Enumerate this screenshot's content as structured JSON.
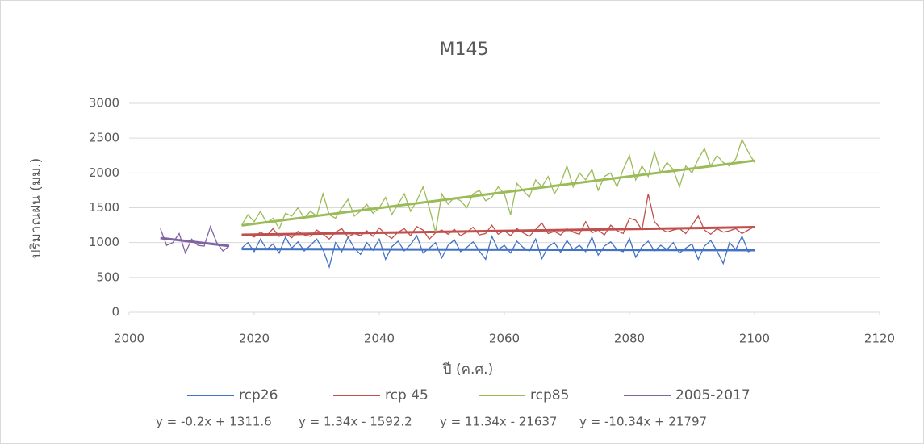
{
  "chart_data": {
    "type": "line",
    "title": "M145",
    "x_label": "ปี (ค.ศ.)",
    "y_label": "ปริมาณฝน (มม.)",
    "xlim": [
      2000,
      2120
    ],
    "xticks": [
      2000,
      2020,
      2040,
      2060,
      2080,
      2100,
      2120
    ],
    "ylim": [
      0,
      3000
    ],
    "yticks": [
      0,
      500,
      1000,
      1500,
      2000,
      2500,
      3000
    ],
    "grid": true,
    "legend": "bottom",
    "x": [
      2018,
      2019,
      2020,
      2021,
      2022,
      2023,
      2024,
      2025,
      2026,
      2027,
      2028,
      2029,
      2030,
      2031,
      2032,
      2033,
      2034,
      2035,
      2036,
      2037,
      2038,
      2039,
      2040,
      2041,
      2042,
      2043,
      2044,
      2045,
      2046,
      2047,
      2048,
      2049,
      2050,
      2051,
      2052,
      2053,
      2054,
      2055,
      2056,
      2057,
      2058,
      2059,
      2060,
      2061,
      2062,
      2063,
      2064,
      2065,
      2066,
      2067,
      2068,
      2069,
      2070,
      2071,
      2072,
      2073,
      2074,
      2075,
      2076,
      2077,
      2078,
      2079,
      2080,
      2081,
      2082,
      2083,
      2084,
      2085,
      2086,
      2087,
      2088,
      2089,
      2090,
      2091,
      2092,
      2093,
      2094,
      2095,
      2096,
      2097,
      2098,
      2099,
      2100
    ],
    "series": [
      {
        "name": "rcp26",
        "color": "#4472c4",
        "values": [
          920,
          1000,
          870,
          1050,
          900,
          980,
          850,
          1080,
          920,
          1010,
          880,
          960,
          1050,
          900,
          650,
          1000,
          870,
          1080,
          920,
          830,
          1000,
          890,
          1050,
          760,
          940,
          1020,
          880,
          970,
          1100,
          850,
          920,
          1000,
          780,
          960,
          1040,
          870,
          930,
          1010,
          880,
          760,
          1090,
          900,
          960,
          850,
          1020,
          930,
          880,
          1050,
          770,
          940,
          1000,
          860,
          1030,
          900,
          960,
          870,
          1080,
          820,
          950,
          1010,
          900,
          870,
          1060,
          790,
          940,
          1020,
          880,
          960,
          900,
          1000,
          850,
          920,
          980,
          760,
          950,
          1030,
          880,
          700,
          1000,
          900,
          1090,
          870,
          900
        ],
        "trendline": {
          "label": "y = -0.2x + 1311.6",
          "slope": -0.2,
          "intercept": 1311.6
        }
      },
      {
        "name": "rcp 45",
        "color": "#c0504d",
        "values": [
          1100,
          1120,
          1080,
          1150,
          1100,
          1200,
          1090,
          1130,
          1070,
          1160,
          1110,
          1090,
          1180,
          1120,
          1050,
          1150,
          1200,
          1080,
          1130,
          1100,
          1170,
          1090,
          1210,
          1120,
          1060,
          1150,
          1200,
          1100,
          1230,
          1180,
          1050,
          1140,
          1180,
          1120,
          1190,
          1100,
          1150,
          1220,
          1110,
          1130,
          1250,
          1120,
          1170,
          1100,
          1200,
          1140,
          1090,
          1190,
          1280,
          1130,
          1160,
          1110,
          1200,
          1150,
          1120,
          1300,
          1140,
          1180,
          1110,
          1250,
          1170,
          1130,
          1350,
          1320,
          1180,
          1700,
          1300,
          1200,
          1150,
          1180,
          1200,
          1130,
          1250,
          1380,
          1180,
          1120,
          1200,
          1150,
          1170,
          1200,
          1130,
          1180,
          1230
        ],
        "trendline": {
          "label": "y = 1.34x - 1592.2",
          "slope": 1.34,
          "intercept": -1592.2
        }
      },
      {
        "name": "rcp85",
        "color": "#9bbb59",
        "values": [
          1250,
          1400,
          1300,
          1450,
          1280,
          1350,
          1200,
          1420,
          1380,
          1500,
          1350,
          1450,
          1380,
          1700,
          1400,
          1350,
          1500,
          1620,
          1380,
          1450,
          1550,
          1420,
          1500,
          1650,
          1400,
          1550,
          1700,
          1450,
          1600,
          1800,
          1500,
          1150,
          1700,
          1550,
          1650,
          1600,
          1500,
          1700,
          1750,
          1600,
          1650,
          1800,
          1700,
          1400,
          1850,
          1750,
          1650,
          1900,
          1800,
          1950,
          1700,
          1850,
          2100,
          1800,
          2000,
          1900,
          2050,
          1750,
          1950,
          2000,
          1800,
          2050,
          2250,
          1900,
          2100,
          1950,
          2300,
          2000,
          2150,
          2050,
          1800,
          2100,
          2000,
          2200,
          2350,
          2100,
          2250,
          2150,
          2100,
          2200,
          2480,
          2300,
          2150
        ],
        "trendline": {
          "label": "y = 11.34x - 21637",
          "slope": 11.34,
          "intercept": -21637
        }
      },
      {
        "name": "2005-2017",
        "color": "#8064a2",
        "x": [
          2005,
          2006,
          2007,
          2008,
          2009,
          2010,
          2011,
          2012,
          2013,
          2014,
          2015,
          2016
        ],
        "values": [
          1200,
          960,
          1000,
          1130,
          850,
          1050,
          960,
          950,
          1230,
          1000,
          880,
          950
        ],
        "trendline": {
          "label": "y = -10.34x + 21797",
          "slope": -10.34,
          "intercept": 21797
        }
      }
    ]
  }
}
